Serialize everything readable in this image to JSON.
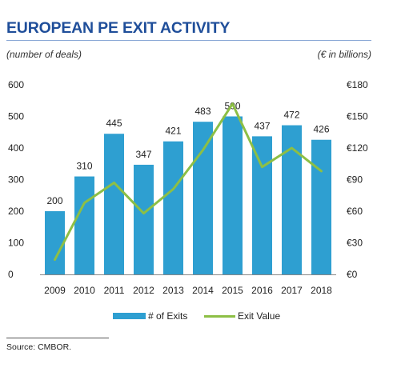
{
  "title": "EUROPEAN PE EXIT ACTIVITY",
  "left_unit": "(number of deals)",
  "right_unit": "(€ in billions)",
  "source": "Source:  CMBOR.",
  "colors": {
    "bar": "#2e9fd1",
    "line": "#8dbf45",
    "title": "#1f4e9a"
  },
  "chart_data": {
    "type": "bar",
    "categories": [
      "2009",
      "2010",
      "2011",
      "2012",
      "2013",
      "2014",
      "2015",
      "2016",
      "2017",
      "2018"
    ],
    "series": [
      {
        "name": "# of Exits",
        "type": "bar",
        "axis": "left",
        "values": [
          200,
          310,
          445,
          347,
          421,
          483,
          500,
          437,
          472,
          426
        ]
      },
      {
        "name": "Exit Value",
        "type": "line",
        "axis": "right",
        "values": [
          14,
          68,
          87,
          58,
          81,
          118,
          162,
          102,
          120,
          98
        ]
      }
    ],
    "y_left": {
      "min": 0,
      "max": 600,
      "ticks": [
        "0",
        "100",
        "200",
        "300",
        "400",
        "500",
        "600"
      ]
    },
    "y_right": {
      "min": 0,
      "max": 180,
      "ticks": [
        "€0",
        "€30",
        "€60",
        "€90",
        "€120",
        "€150",
        "€180"
      ]
    },
    "data_labels": [
      "200",
      "310",
      "445",
      "347",
      "421",
      "483",
      "500",
      "437",
      "472",
      "426"
    ],
    "grid": false,
    "legend": "bottom"
  }
}
